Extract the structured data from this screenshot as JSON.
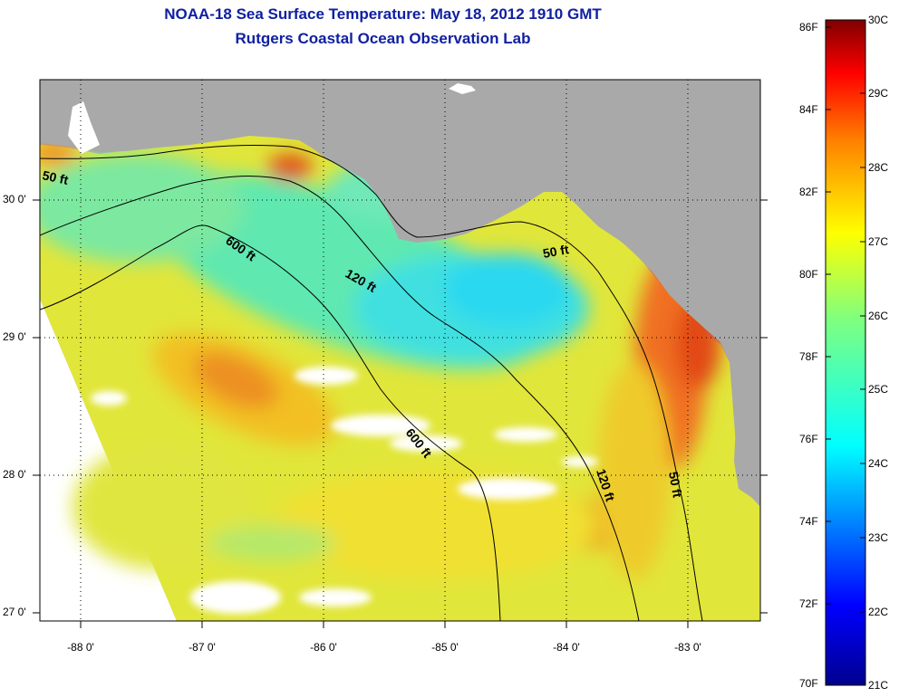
{
  "title": {
    "line1": "NOAA-18 Sea Surface Temperature:  May 18, 2012 1910 GMT",
    "line2": "Rutgers Coastal Ocean Observation Lab"
  },
  "map": {
    "lat_labels": [
      "30 0'",
      "29 0'",
      "28 0'",
      "27 0'"
    ],
    "lon_labels": [
      "-88 0'",
      "-87 0'",
      "-86 0'",
      "-85 0'",
      "-84 0'",
      "-83 0'"
    ],
    "contour_labels": [
      "50 ft",
      "600 ft",
      "120 ft",
      "50 ft",
      "600 ft",
      "120 ft",
      "50 ft"
    ],
    "colors": {
      "land": "#a9a9a9",
      "cloud": "#ffffff",
      "water_base": "#e6e62e"
    }
  },
  "colorbar": {
    "fahrenheit": [
      "86F",
      "84F",
      "82F",
      "80F",
      "78F",
      "76F",
      "74F",
      "72F",
      "70F"
    ],
    "celsius": [
      "30C",
      "29C",
      "28C",
      "27C",
      "26C",
      "25C",
      "24C",
      "23C",
      "22C",
      "21C"
    ],
    "colors": [
      "#7f0000",
      "#ff0000",
      "#ff7f00",
      "#ffff00",
      "#7fff7f",
      "#00ffff",
      "#007fff",
      "#0000ff",
      "#00008f"
    ]
  }
}
